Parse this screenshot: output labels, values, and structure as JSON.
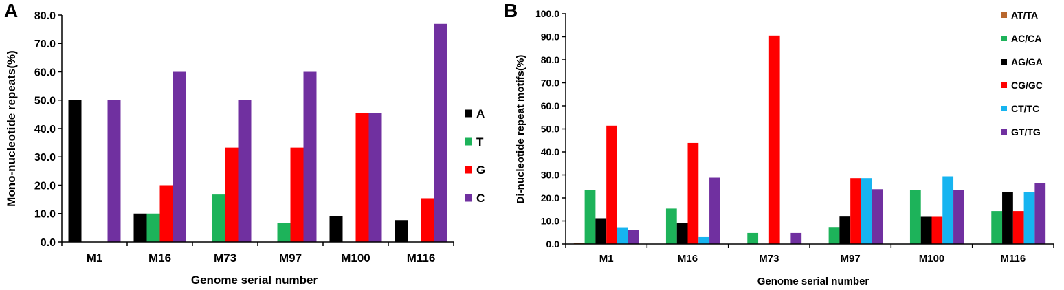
{
  "chart_data": [
    {
      "panel_label": "A",
      "type": "bar",
      "ylabel": "Mono-nucleotide repeats(%)",
      "xlabel": "Genome serial number",
      "categories": [
        "M1",
        "M16",
        "M73",
        "M97",
        "M100",
        "M116"
      ],
      "ylim": [
        0,
        80
      ],
      "ytick_step": 10,
      "ytick_labels": [
        "0.0",
        "10.0",
        "20.0",
        "30.0",
        "40.0",
        "50.0",
        "60.0",
        "70.0",
        "80.0"
      ],
      "legend_position": "right",
      "series": [
        {
          "name": "A",
          "color": "#000000",
          "values": [
            50.0,
            10.0,
            0.0,
            0.0,
            9.1,
            7.7
          ]
        },
        {
          "name": "T",
          "color": "#1db35a",
          "values": [
            0.0,
            10.0,
            16.7,
            6.7,
            0.0,
            0.0
          ]
        },
        {
          "name": "G",
          "color": "#ff0000",
          "values": [
            0.0,
            20.0,
            33.3,
            33.3,
            45.5,
            15.4
          ]
        },
        {
          "name": "C",
          "color": "#7030a0",
          "values": [
            50.0,
            60.0,
            50.0,
            60.0,
            45.5,
            76.9
          ]
        }
      ]
    },
    {
      "panel_label": "B",
      "type": "bar",
      "ylabel": "Di-nucleotide repeat motifs(%)",
      "xlabel": "Genome serial number",
      "categories": [
        "M1",
        "M16",
        "M73",
        "M97",
        "M100",
        "M116"
      ],
      "ylim": [
        0,
        100
      ],
      "ytick_step": 10,
      "ytick_labels": [
        "0.0",
        "10.0",
        "20.0",
        "30.0",
        "40.0",
        "50.0",
        "60.0",
        "70.0",
        "80.0",
        "90.0",
        "100.0"
      ],
      "legend_position": "top-right",
      "series": [
        {
          "name": "AT/TA",
          "color": "#b8672e",
          "values": [
            0.5,
            0.0,
            0.0,
            0.0,
            0.0,
            0.0
          ]
        },
        {
          "name": "AC/CA",
          "color": "#1db35a",
          "values": [
            23.4,
            15.4,
            4.8,
            7.1,
            23.5,
            14.3
          ]
        },
        {
          "name": "AG/GA",
          "color": "#000000",
          "values": [
            11.2,
            9.1,
            0.0,
            11.9,
            11.8,
            22.4
          ]
        },
        {
          "name": "CG/GC",
          "color": "#ff0000",
          "values": [
            51.4,
            43.9,
            90.5,
            28.6,
            11.8,
            14.3
          ]
        },
        {
          "name": "CT/TC",
          "color": "#16b4f0",
          "values": [
            7.0,
            3.0,
            0.0,
            28.6,
            29.4,
            22.4
          ]
        },
        {
          "name": "GT/TG",
          "color": "#7030a0",
          "values": [
            6.1,
            28.8,
            4.8,
            23.8,
            23.5,
            26.5
          ]
        }
      ]
    }
  ]
}
